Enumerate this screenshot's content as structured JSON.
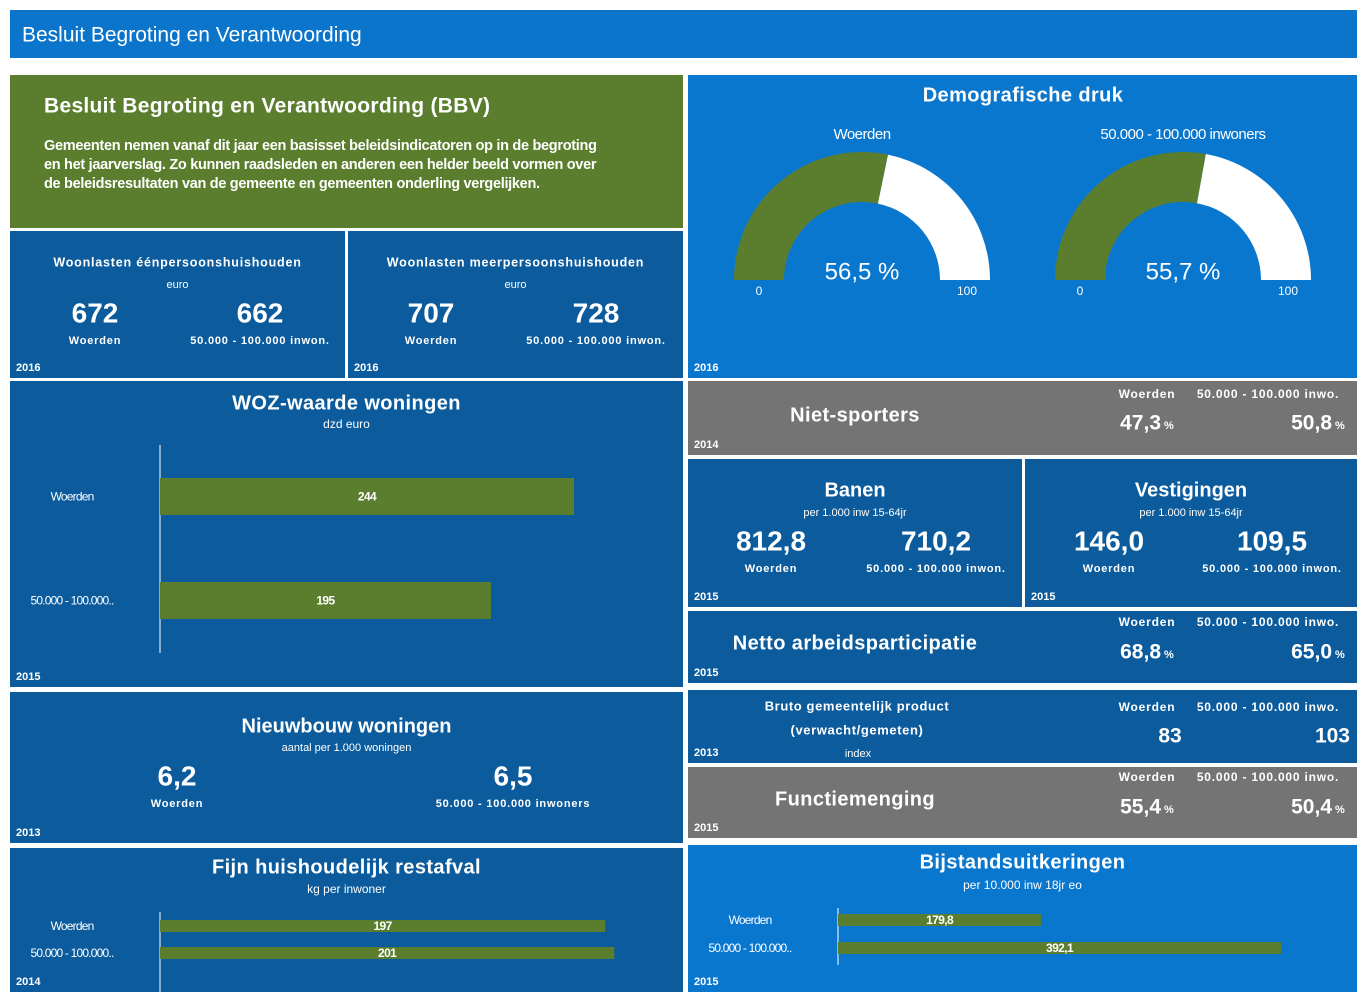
{
  "header": {
    "title": "Besluit Begroting en Verantwoording"
  },
  "intro": {
    "title": "Besluit Begroting en Verantwoording (BBV)",
    "lines": [
      "Gemeenten nemen vanaf dit jaar een basisset beleidsindicatoren op in de begroting",
      "en het jaarverslag. Zo kunnen raadsleden en anderen een helder beeld vormen over",
      "de beleidsresultaten van de gemeente en gemeenten onderling vergelijken."
    ]
  },
  "woonlasten_een": {
    "title": "Woonlasten éénpersoonshuishouden",
    "unit": "euro",
    "values": [
      {
        "name": "Woerden",
        "value": 672
      },
      {
        "name": "50.000 - 100.000 inwon.",
        "value": 662
      }
    ],
    "year": "2016"
  },
  "woonlasten_meer": {
    "title": "Woonlasten meerpersoonshuishouden",
    "unit": "euro",
    "values": [
      {
        "name": "Woerden",
        "value": 707
      },
      {
        "name": "50.000 - 100.000 inwon.",
        "value": 728
      }
    ],
    "year": "2016"
  },
  "demografische_druk": {
    "title": "Demografische druk",
    "gauges": [
      {
        "name": "Woerden",
        "value": 56.5,
        "label": "56,5 %"
      },
      {
        "name": "50.000 - 100.000 inwoners",
        "value": 55.7,
        "label": "55,7 %"
      }
    ],
    "min": 0,
    "max": 100,
    "year": "2016"
  },
  "woz": {
    "title": "WOZ-waarde woningen",
    "unit": "dzd euro",
    "categories": [
      "Woerden",
      "50.000 - 100.000.."
    ],
    "values": [
      244,
      195
    ],
    "year": "2015"
  },
  "niet_sporters": {
    "title": "Niet-sporters",
    "headers": [
      "Woerden",
      "50.000 - 100.000 inwo."
    ],
    "values": [
      "47,3",
      "50,8"
    ],
    "unit": "%",
    "year": "2014"
  },
  "banen": {
    "title": "Banen",
    "unit": "per 1.000 inw 15-64jr",
    "values": [
      {
        "name": "Woerden",
        "value": "812,8"
      },
      {
        "name": "50.000 - 100.000 inwon.",
        "value": "710,2"
      }
    ],
    "year": "2015"
  },
  "vestigingen": {
    "title": "Vestigingen",
    "unit": "per 1.000 inw 15-64jr",
    "values": [
      {
        "name": "Woerden",
        "value": "146,0"
      },
      {
        "name": "50.000 - 100.000 inwon.",
        "value": "109,5"
      }
    ],
    "year": "2015"
  },
  "netto_arbeidsparticipatie": {
    "title": "Netto arbeidsparticipatie",
    "headers": [
      "Woerden",
      "50.000 - 100.000 inwo."
    ],
    "values": [
      "68,8",
      "65,0"
    ],
    "unit": "%",
    "year": "2015"
  },
  "nieuwbouw": {
    "title": "Nieuwbouw woningen",
    "unit": "aantal per 1.000 woningen",
    "values": [
      {
        "name": "Woerden",
        "value": "6,2"
      },
      {
        "name": "50.000 - 100.000 inwoners",
        "value": "6,5"
      }
    ],
    "year": "2013"
  },
  "bruto": {
    "title": "Bruto gemeentelijk product",
    "subtitle": "(verwacht/gemeten)",
    "unit": "index",
    "headers": [
      "Woerden",
      "50.000 - 100.000 inwo."
    ],
    "values": [
      83,
      103
    ],
    "year": "2013"
  },
  "functiemenging": {
    "title": "Functiemenging",
    "headers": [
      "Woerden",
      "50.000 - 100.000 inwo."
    ],
    "values": [
      "55,4",
      "50,4"
    ],
    "unit": "%",
    "year": "2015"
  },
  "restafval": {
    "title": "Fijn huishoudelijk restafval",
    "unit": "kg per inwoner",
    "categories": [
      "Woerden",
      "50.000 - 100.000.."
    ],
    "values": [
      197,
      201
    ],
    "year": "2014"
  },
  "bijstand": {
    "title": "Bijstandsuitkeringen",
    "unit": "per 10.000 inw 18jr eo",
    "categories": [
      "Woerden",
      "50.000 - 100.000.."
    ],
    "values": [
      {
        "value": 179.8,
        "label": "179,8"
      },
      {
        "value": 392.1,
        "label": "392,1"
      }
    ],
    "year": "2015"
  }
}
